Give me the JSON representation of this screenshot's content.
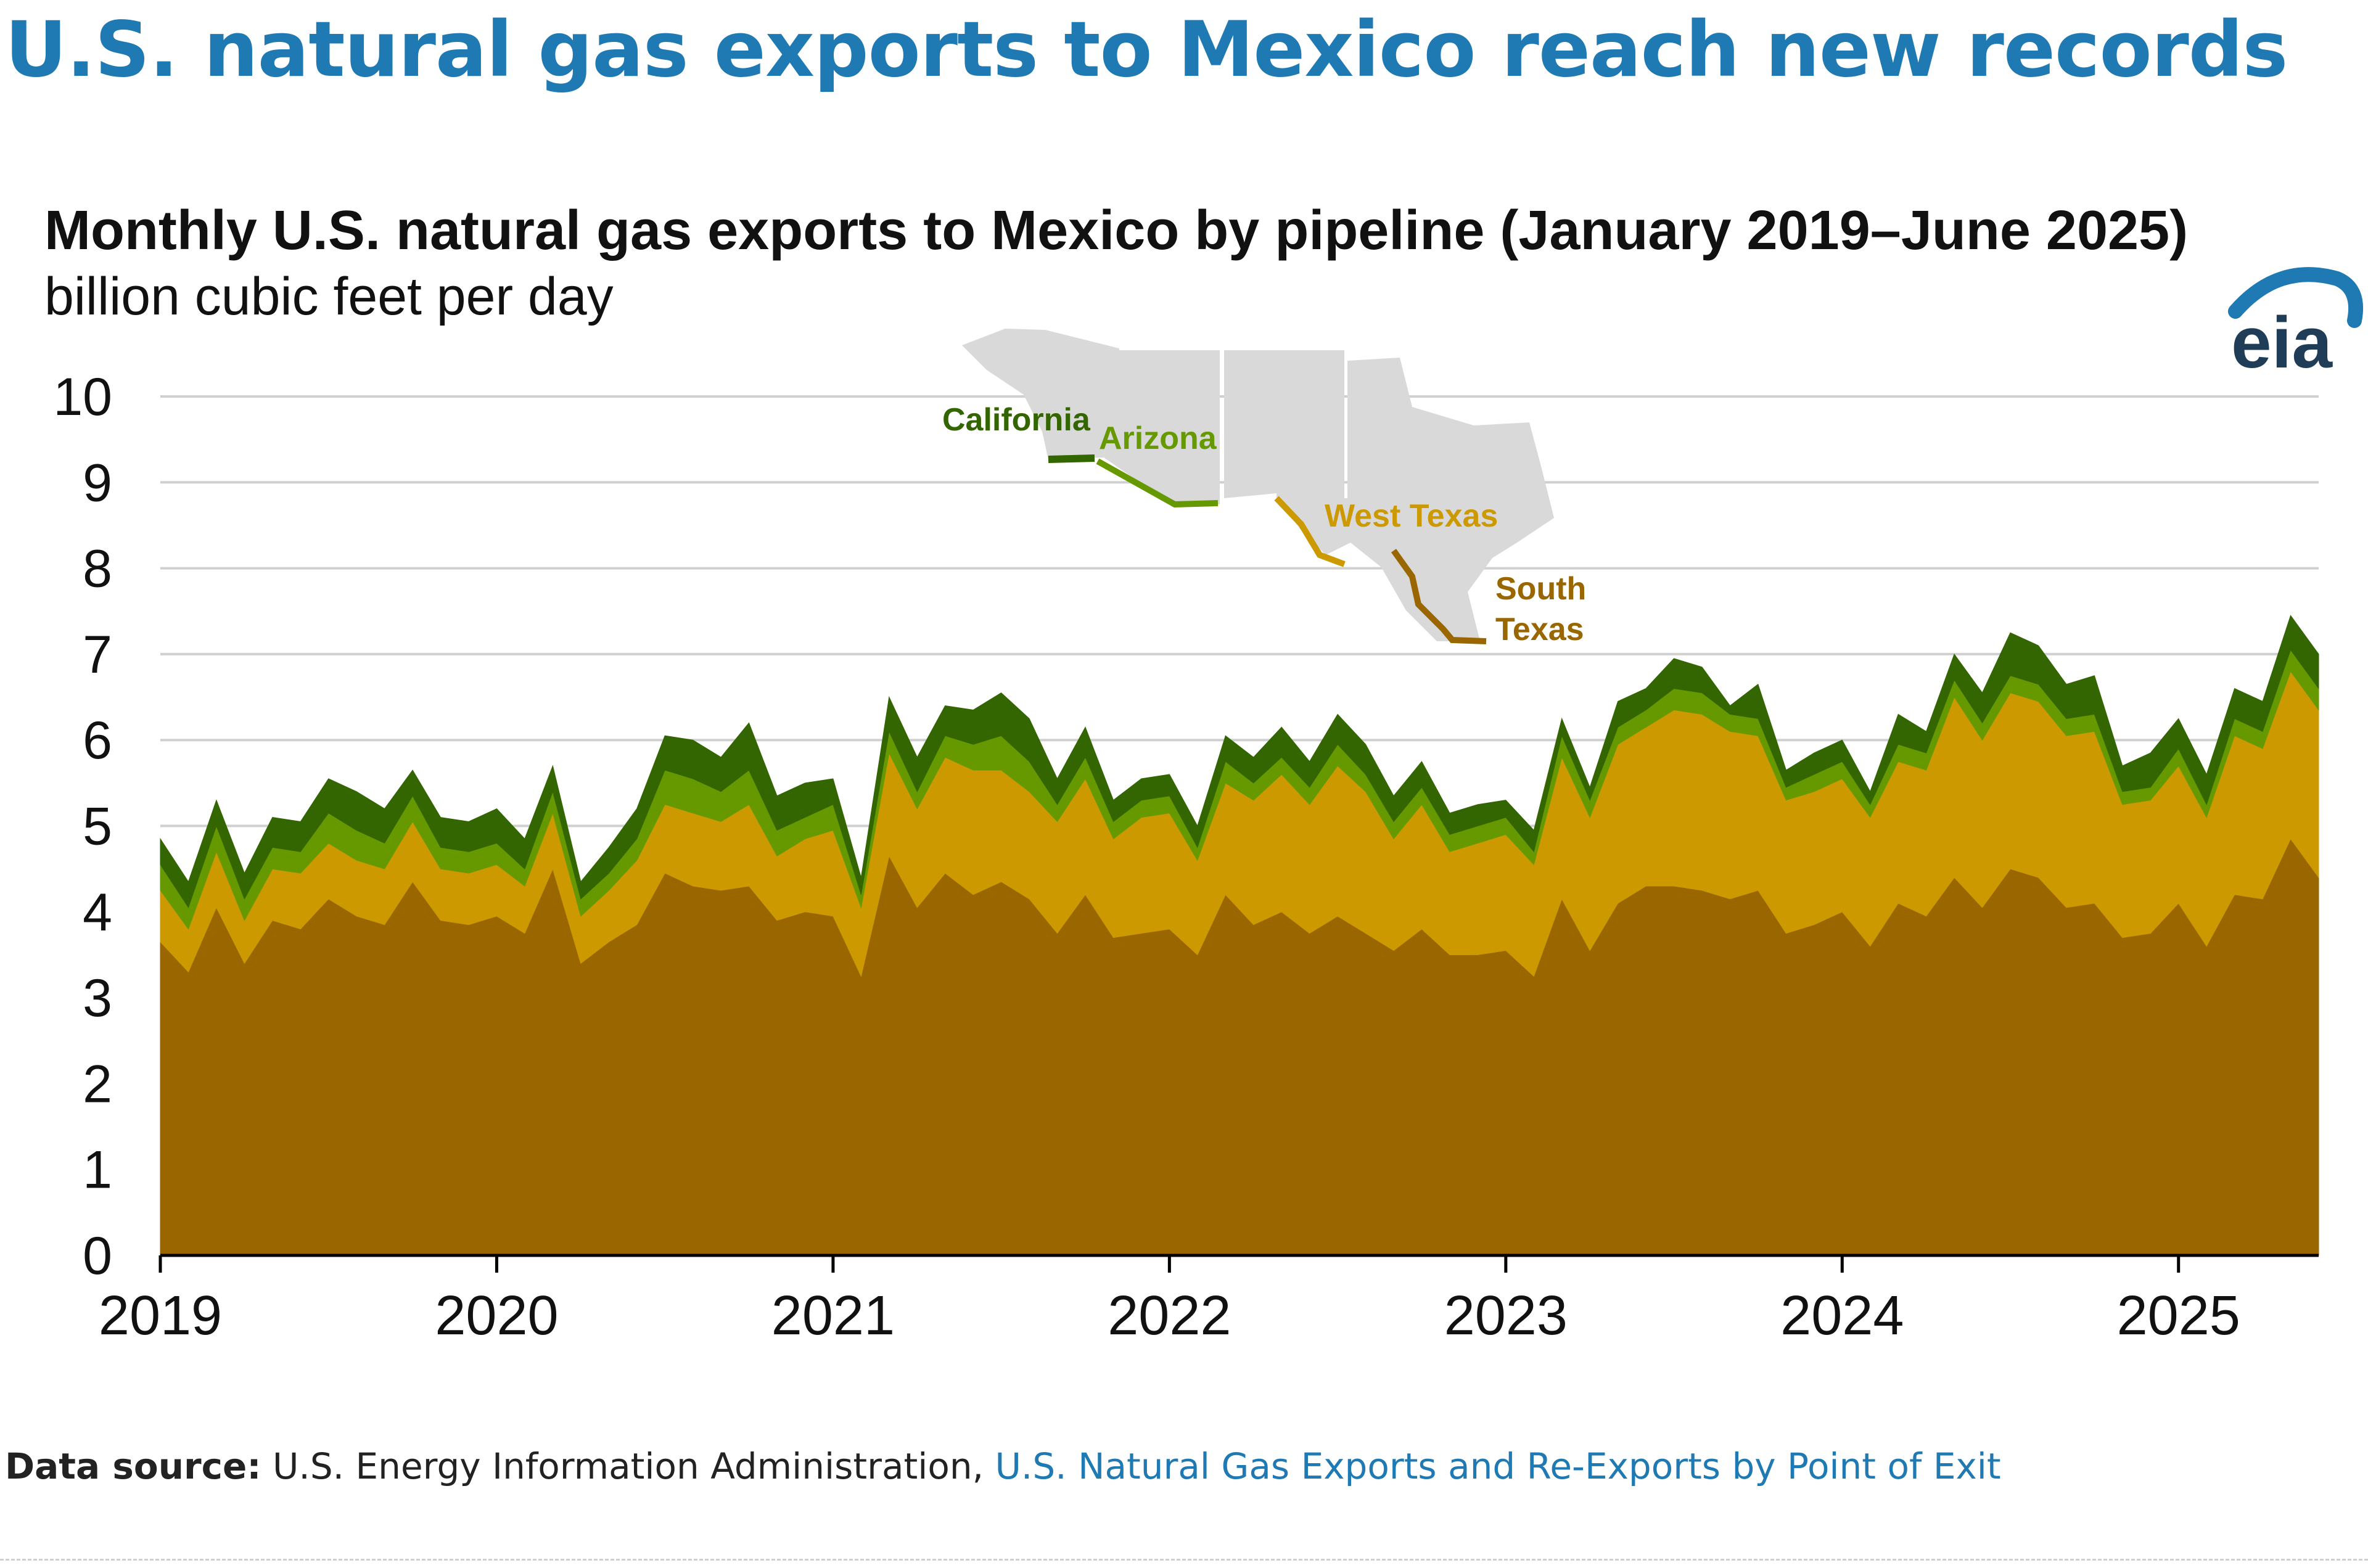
{
  "headline": "U.S. natural gas exports to Mexico reach new records",
  "source": {
    "label": "Data source:",
    "text": "U.S. Energy Information Administration,",
    "link_text": "U.S. Natural Gas Exports and Re-Exports by Point of Exit"
  },
  "logo_text": "eia",
  "chart_data": {
    "type": "area",
    "stacked": true,
    "title": "Monthly U.S. natural gas exports to Mexico by pipeline (January 2019–June 2025)",
    "ylabel": "billion cubic feet per day",
    "xlabel": "",
    "ylim": [
      0,
      10
    ],
    "yticks": [
      "0",
      "1",
      "2",
      "3",
      "4",
      "5",
      "6",
      "7",
      "8",
      "9",
      "10"
    ],
    "xticks": [
      "2019",
      "2020",
      "2021",
      "2022",
      "2023",
      "2024",
      "2025"
    ],
    "grid": true,
    "x_start": "2019-01",
    "x_end": "2025-06",
    "totals": [
      4.85,
      4.35,
      5.3,
      4.45,
      5.1,
      5.05,
      5.55,
      5.4,
      5.2,
      5.65,
      5.1,
      5.05,
      5.2,
      4.85,
      5.7,
      4.35,
      4.75,
      5.2,
      6.05,
      6.0,
      5.8,
      6.2,
      5.35,
      5.5,
      5.55,
      4.4,
      6.5,
      5.8,
      6.4,
      6.35,
      6.55,
      6.25,
      5.55,
      6.15,
      5.3,
      5.55,
      5.6,
      5.0,
      6.05,
      5.8,
      6.15,
      5.75,
      6.3,
      5.95,
      5.35,
      5.75,
      5.15,
      5.25,
      5.3,
      4.95,
      6.25,
      5.45,
      6.45,
      6.6,
      6.95,
      6.85,
      6.4,
      6.65,
      5.65,
      5.85,
      6.0,
      5.4,
      6.3,
      6.1,
      7.0,
      6.55,
      7.25,
      7.1,
      6.65,
      6.75,
      5.7,
      5.85,
      6.25,
      5.6,
      6.6,
      6.45,
      7.45,
      7.0
    ],
    "series": [
      {
        "name": "South Texas",
        "color": "#996600",
        "values": [
          3.65,
          3.3,
          4.05,
          3.4,
          3.9,
          3.8,
          4.15,
          3.95,
          3.85,
          4.35,
          3.9,
          3.85,
          3.95,
          3.75,
          4.5,
          3.4,
          3.65,
          3.85,
          4.45,
          4.3,
          4.25,
          4.3,
          3.9,
          4.0,
          3.95,
          3.25,
          4.65,
          4.05,
          4.45,
          4.2,
          4.35,
          4.15,
          3.75,
          4.2,
          3.7,
          3.75,
          3.8,
          3.5,
          4.2,
          3.85,
          4.0,
          3.75,
          3.95,
          3.75,
          3.55,
          3.8,
          3.5,
          3.5,
          3.55,
          3.25,
          4.15,
          3.55,
          4.1,
          4.3,
          4.3,
          4.25,
          4.15,
          4.25,
          3.75,
          3.85,
          4.0,
          3.6,
          4.1,
          3.95,
          4.4,
          4.05,
          4.5,
          4.4,
          4.05,
          4.1,
          3.7,
          3.75,
          4.1,
          3.6,
          4.2,
          4.15,
          4.85,
          4.4
        ]
      },
      {
        "name": "West Texas",
        "color": "#cc9900",
        "values": [
          0.6,
          0.5,
          0.65,
          0.5,
          0.6,
          0.65,
          0.65,
          0.65,
          0.65,
          0.7,
          0.6,
          0.6,
          0.6,
          0.55,
          0.65,
          0.55,
          0.6,
          0.75,
          0.8,
          0.85,
          0.8,
          0.95,
          0.75,
          0.85,
          1.0,
          0.8,
          1.2,
          1.15,
          1.35,
          1.45,
          1.3,
          1.25,
          1.3,
          1.35,
          1.15,
          1.35,
          1.35,
          1.1,
          1.3,
          1.45,
          1.6,
          1.5,
          1.75,
          1.65,
          1.3,
          1.45,
          1.2,
          1.3,
          1.35,
          1.3,
          1.65,
          1.55,
          1.85,
          1.85,
          2.05,
          2.05,
          1.95,
          1.8,
          1.55,
          1.55,
          1.55,
          1.5,
          1.65,
          1.7,
          2.1,
          1.95,
          2.05,
          2.05,
          2.0,
          2.0,
          1.55,
          1.55,
          1.6,
          1.5,
          1.85,
          1.75,
          1.95,
          1.95
        ]
      },
      {
        "name": "Arizona",
        "color": "#669900",
        "values": [
          0.3,
          0.25,
          0.3,
          0.25,
          0.25,
          0.25,
          0.35,
          0.35,
          0.3,
          0.3,
          0.25,
          0.25,
          0.25,
          0.2,
          0.25,
          0.2,
          0.2,
          0.25,
          0.4,
          0.4,
          0.35,
          0.4,
          0.3,
          0.25,
          0.3,
          0.15,
          0.25,
          0.2,
          0.25,
          0.3,
          0.4,
          0.35,
          0.2,
          0.25,
          0.2,
          0.2,
          0.2,
          0.15,
          0.25,
          0.2,
          0.2,
          0.2,
          0.25,
          0.2,
          0.2,
          0.2,
          0.2,
          0.2,
          0.2,
          0.15,
          0.25,
          0.2,
          0.2,
          0.2,
          0.25,
          0.25,
          0.2,
          0.2,
          0.15,
          0.2,
          0.2,
          0.15,
          0.2,
          0.2,
          0.2,
          0.2,
          0.2,
          0.2,
          0.2,
          0.2,
          0.15,
          0.15,
          0.2,
          0.15,
          0.2,
          0.2,
          0.25,
          0.25
        ]
      },
      {
        "name": "California",
        "color": "#336600",
        "values": [
          0.3,
          0.3,
          0.3,
          0.3,
          0.35,
          0.35,
          0.4,
          0.45,
          0.4,
          0.3,
          0.35,
          0.35,
          0.4,
          0.35,
          0.3,
          0.2,
          0.3,
          0.35,
          0.4,
          0.45,
          0.4,
          0.55,
          0.4,
          0.4,
          0.3,
          0.2,
          0.4,
          0.4,
          0.35,
          0.4,
          0.5,
          0.5,
          0.3,
          0.35,
          0.25,
          0.25,
          0.25,
          0.25,
          0.3,
          0.3,
          0.35,
          0.3,
          0.35,
          0.35,
          0.3,
          0.3,
          0.25,
          0.25,
          0.2,
          0.25,
          0.2,
          0.15,
          0.3,
          0.25,
          0.35,
          0.3,
          0.1,
          0.4,
          0.2,
          0.25,
          0.25,
          0.15,
          0.35,
          0.25,
          0.3,
          0.35,
          0.5,
          0.45,
          0.4,
          0.45,
          0.3,
          0.4,
          0.35,
          0.35,
          0.35,
          0.35,
          0.4,
          0.4
        ]
      }
    ],
    "map_labels": {
      "california": "California",
      "arizona": "Arizona",
      "west_texas": "West Texas",
      "south_texas_1": "South",
      "south_texas_2": "Texas"
    }
  }
}
